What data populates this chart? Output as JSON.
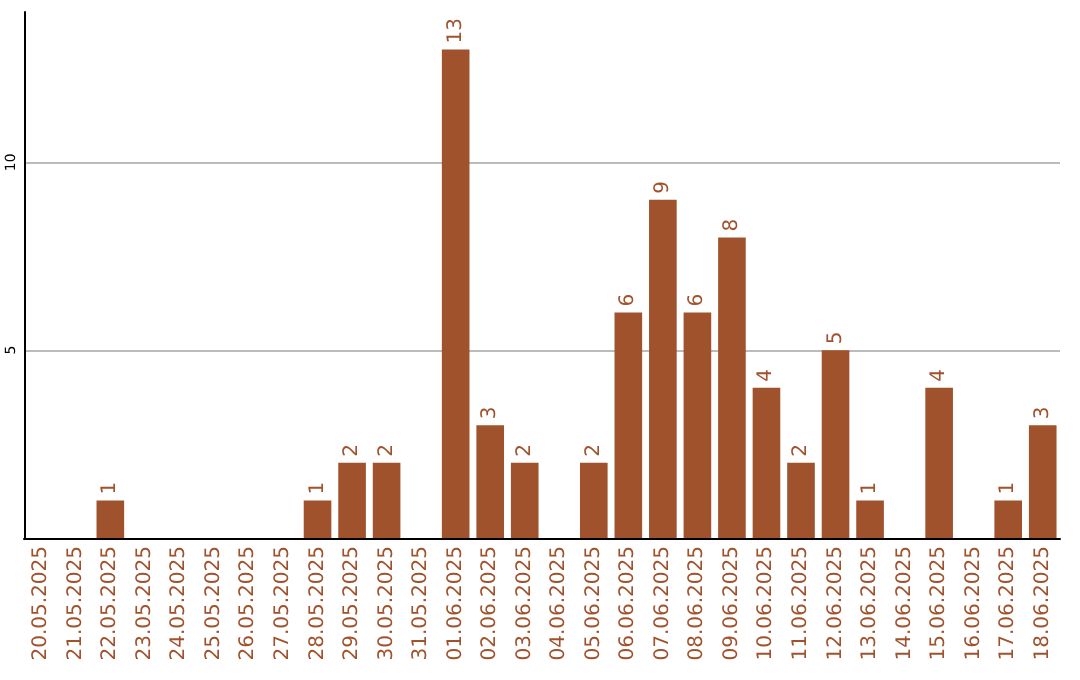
{
  "chart_data": {
    "type": "bar",
    "categories": [
      "20.05.2025",
      "21.05.2025",
      "22.05.2025",
      "23.05.2025",
      "24.05.2025",
      "25.05.2025",
      "26.05.2025",
      "27.05.2025",
      "28.05.2025",
      "29.05.2025",
      "30.05.2025",
      "31.05.2025",
      "01.06.2025",
      "02.06.2025",
      "03.06.2025",
      "04.06.2025",
      "05.06.2025",
      "06.06.2025",
      "07.06.2025",
      "08.06.2025",
      "09.06.2025",
      "10.06.2025",
      "11.06.2025",
      "12.06.2025",
      "13.06.2025",
      "14.06.2025",
      "15.06.2025",
      "16.06.2025",
      "17.06.2025",
      "18.06.2025"
    ],
    "values": [
      0,
      0,
      1,
      0,
      0,
      0,
      0,
      0,
      1,
      2,
      2,
      0,
      13,
      3,
      2,
      0,
      2,
      6,
      9,
      6,
      8,
      4,
      2,
      5,
      1,
      0,
      4,
      0,
      1,
      3
    ],
    "value_labels": [
      null,
      null,
      "1",
      null,
      null,
      null,
      null,
      null,
      "1",
      "2",
      "2",
      null,
      "13",
      "3",
      "2",
      null,
      "2",
      "6",
      "9",
      "6",
      "8",
      "4",
      "2",
      "5",
      "1",
      null,
      "4",
      null,
      "1",
      "3"
    ],
    "color": "#a0522d",
    "ylim": [
      0,
      14
    ],
    "yticks": [
      5,
      10
    ],
    "grid": "y"
  }
}
